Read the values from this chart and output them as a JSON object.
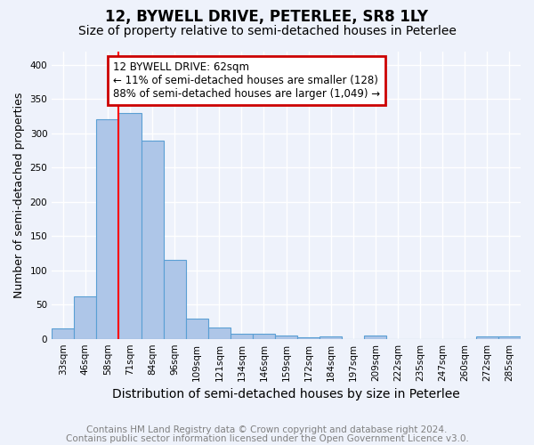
{
  "title": "12, BYWELL DRIVE, PETERLEE, SR8 1LY",
  "subtitle": "Size of property relative to semi-detached houses in Peterlee",
  "xlabel": "Distribution of semi-detached houses by size in Peterlee",
  "ylabel": "Number of semi-detached properties",
  "bin_labels": [
    "33sqm",
    "46sqm",
    "58sqm",
    "71sqm",
    "84sqm",
    "96sqm",
    "109sqm",
    "121sqm",
    "134sqm",
    "146sqm",
    "159sqm",
    "172sqm",
    "184sqm",
    "197sqm",
    "209sqm",
    "222sqm",
    "235sqm",
    "247sqm",
    "260sqm",
    "272sqm",
    "285sqm"
  ],
  "bar_heights": [
    15,
    62,
    320,
    330,
    290,
    115,
    30,
    16,
    8,
    7,
    5,
    2,
    3,
    0,
    5,
    0,
    0,
    0,
    0,
    3,
    3
  ],
  "bar_color": "#aec6e8",
  "bar_edgecolor": "#5a9fd4",
  "red_line_x": 2.5,
  "annotation_text": "12 BYWELL DRIVE: 62sqm\n← 11% of semi-detached houses are smaller (128)\n88% of semi-detached houses are larger (1,049) →",
  "annotation_box_color": "white",
  "annotation_box_edgecolor": "#cc0000",
  "ylim": [
    0,
    420
  ],
  "yticks": [
    0,
    50,
    100,
    150,
    200,
    250,
    300,
    350,
    400
  ],
  "footnote1": "Contains HM Land Registry data © Crown copyright and database right 2024.",
  "footnote2": "Contains public sector information licensed under the Open Government Licence v3.0.",
  "background_color": "#eef2fb",
  "grid_color": "white",
  "title_fontsize": 12,
  "subtitle_fontsize": 10,
  "xlabel_fontsize": 10,
  "ylabel_fontsize": 9,
  "tick_fontsize": 7.5,
  "annotation_fontsize": 8.5,
  "footnote_fontsize": 7.5
}
